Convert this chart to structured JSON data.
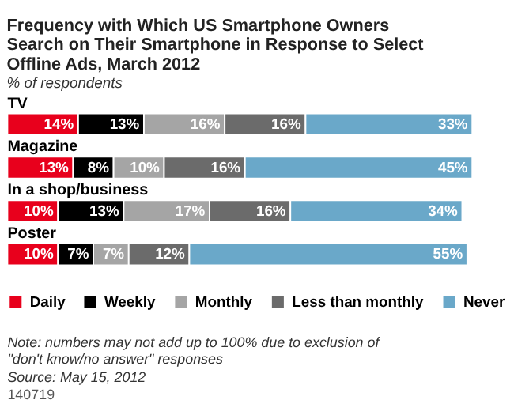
{
  "chart_data": {
    "type": "bar",
    "orientation": "horizontal",
    "stacked": true,
    "title": [
      "Frequency with Which US Smartphone Owners",
      "Search on Their Smartphone in Response to Select",
      "Offline Ads, March 2012"
    ],
    "subtitle": "% of respondents",
    "categories": [
      "TV",
      "Magazine",
      "In a shop/business",
      "Poster"
    ],
    "series": [
      {
        "name": "Daily",
        "color": "#e8001c",
        "values": [
          14,
          13,
          10,
          10
        ],
        "value_labels": [
          "14%",
          "13%",
          "10%",
          "10%"
        ]
      },
      {
        "name": "Weekly",
        "color": "#000000",
        "values": [
          13,
          8,
          13,
          7
        ],
        "value_labels": [
          "13%",
          "8%",
          "13%",
          "7%"
        ]
      },
      {
        "name": "Monthly",
        "color": "#a5a5a5",
        "values": [
          16,
          10,
          17,
          7
        ],
        "value_labels": [
          "16%",
          "10%",
          "17%",
          "7%"
        ]
      },
      {
        "name": "Less than monthly",
        "color": "#6b6b6b",
        "values": [
          16,
          16,
          16,
          12
        ],
        "value_labels": [
          "16%",
          "16%",
          "16%",
          "12%"
        ]
      },
      {
        "name": "Never",
        "color": "#6aa8c9",
        "values": [
          33,
          45,
          34,
          55
        ],
        "value_labels": [
          "33%",
          "45%",
          "34%",
          "55%"
        ]
      }
    ],
    "legend": "bottom",
    "annotations": [
      "Note: numbers may not add up to 100% due to exclusion of \"don't know/no answer\" responses",
      "Source: May 15, 2012",
      "140719"
    ]
  }
}
